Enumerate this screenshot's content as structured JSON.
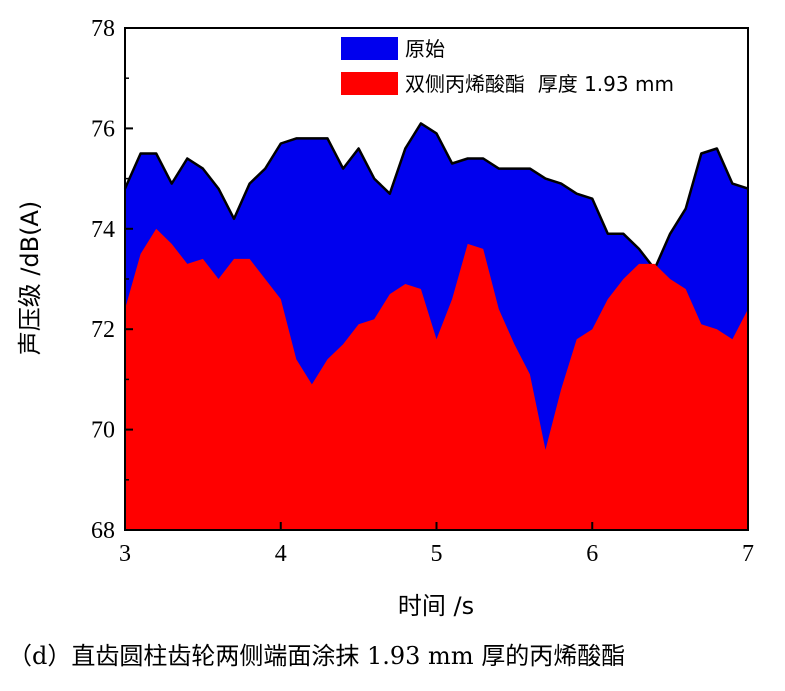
{
  "chart_data": {
    "type": "area",
    "xlabel": "时间 /s",
    "ylabel": "声压级 /dB(A)",
    "xlim": [
      3,
      7
    ],
    "ylim": [
      68,
      78
    ],
    "xticks": [
      "3",
      "4",
      "5",
      "6",
      "7"
    ],
    "yticks": [
      "68",
      "70",
      "72",
      "74",
      "76",
      "78"
    ],
    "legend_position": "top-right",
    "x": [
      3.0,
      3.1,
      3.2,
      3.3,
      3.4,
      3.5,
      3.6,
      3.7,
      3.8,
      3.9,
      4.0,
      4.1,
      4.2,
      4.3,
      4.4,
      4.5,
      4.6,
      4.7,
      4.8,
      4.9,
      5.0,
      5.1,
      5.2,
      5.3,
      5.4,
      5.5,
      5.6,
      5.7,
      5.8,
      5.9,
      6.0,
      6.1,
      6.2,
      6.3,
      6.4,
      6.5,
      6.6,
      6.7,
      6.8,
      6.9,
      7.0
    ],
    "series": [
      {
        "name": "原始",
        "color": "#0000ee",
        "values": [
          74.8,
          75.5,
          75.5,
          74.9,
          75.4,
          75.2,
          74.8,
          74.2,
          74.9,
          75.2,
          75.7,
          75.8,
          75.8,
          75.8,
          75.2,
          75.6,
          75.0,
          74.7,
          75.6,
          76.1,
          75.9,
          75.3,
          75.4,
          75.4,
          75.2,
          75.2,
          75.2,
          75.0,
          74.9,
          74.7,
          74.6,
          73.9,
          73.9,
          73.6,
          73.2,
          73.9,
          74.4,
          75.5,
          75.6,
          74.9,
          74.8
        ]
      },
      {
        "name": "双侧丙烯酸酯  厚度 1.93 mm",
        "color": "#ff0000",
        "values": [
          72.4,
          73.5,
          74.0,
          73.7,
          73.3,
          73.4,
          73.0,
          73.4,
          73.4,
          73.0,
          72.6,
          71.4,
          70.9,
          71.4,
          71.7,
          72.1,
          72.2,
          72.7,
          72.9,
          72.8,
          71.8,
          72.6,
          73.7,
          73.6,
          72.4,
          71.7,
          71.1,
          69.6,
          70.8,
          71.8,
          72.0,
          72.6,
          73.0,
          73.3,
          73.3,
          73.0,
          72.8,
          72.1,
          72.0,
          71.8,
          72.4
        ]
      }
    ]
  },
  "caption": "（d）直齿圆柱齿轮两侧端面涂抹 1.93 mm 厚的丙烯酸酯"
}
